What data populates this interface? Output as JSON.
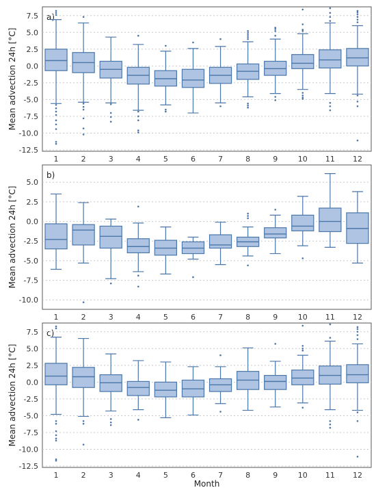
{
  "figure": {
    "xlabel": "Month",
    "ylabel": "Mean advection 24h [°C]",
    "colors": {
      "box_fill": "#aec4e2",
      "box_edge": "#4a76a8",
      "grid": "#c8c8c8",
      "frame": "#555555"
    }
  },
  "chart_data": [
    {
      "type": "box",
      "panel_label": "a)",
      "title": "",
      "xlabel": "",
      "ylabel": "Mean advection 24h [°C]",
      "grid": "horizontal dotted",
      "categories": [
        "1",
        "2",
        "3",
        "4",
        "5",
        "6",
        "7",
        "8",
        "9",
        "10",
        "11",
        "12"
      ],
      "ylim": [
        -12.7,
        8.8
      ],
      "yticks": [
        -12.5,
        -10.0,
        -7.5,
        -5.0,
        -2.5,
        0.0,
        2.5,
        5.0,
        7.5
      ],
      "boxes": [
        {
          "whislo": -5.6,
          "q1": -0.7,
          "med": 0.8,
          "q3": 2.5,
          "whishi": 6.9,
          "fliers": [
            -5.8,
            -6.3,
            -6.8,
            -7.3,
            -8.1,
            -8.7,
            -9.4,
            -11.3,
            -11.6,
            7.6,
            7.9,
            8.2
          ]
        },
        {
          "whislo": -5.4,
          "q1": -1.0,
          "med": 0.5,
          "q3": 2.0,
          "whishi": 6.4,
          "fliers": [
            -5.6,
            -6.1,
            -6.5,
            -7.8,
            -9.3,
            -10.2,
            7.3
          ]
        },
        {
          "whislo": -5.5,
          "q1": -1.8,
          "med": -0.5,
          "q3": 0.7,
          "whishi": 4.3,
          "fliers": [
            -5.7,
            -7.0,
            -7.6,
            -8.3
          ]
        },
        {
          "whislo": -6.6,
          "q1": -2.7,
          "med": -1.4,
          "q3": -0.2,
          "whishi": 3.2,
          "fliers": [
            -6.8,
            -7.5,
            -8.1,
            -9.6,
            -9.9,
            4.5
          ]
        },
        {
          "whislo": -5.8,
          "q1": -3.0,
          "med": -1.9,
          "q3": -0.7,
          "whishi": 2.2,
          "fliers": [
            -6.5,
            -6.8,
            3.0
          ]
        },
        {
          "whislo": -7.0,
          "q1": -3.2,
          "med": -2.1,
          "q3": -0.5,
          "whishi": 2.6,
          "fliers": [
            3.5
          ]
        },
        {
          "whislo": -5.5,
          "q1": -2.6,
          "med": -1.4,
          "q3": -0.2,
          "whishi": 2.9,
          "fliers": [
            -6.0,
            4.0
          ]
        },
        {
          "whislo": -4.6,
          "q1": -2.0,
          "med": -0.8,
          "q3": 0.3,
          "whishi": 3.6,
          "fliers": [
            -5.6,
            -5.9,
            -6.2,
            4.0,
            4.3,
            4.6,
            4.9,
            5.2
          ]
        },
        {
          "whislo": -4.1,
          "q1": -1.4,
          "med": -0.4,
          "q3": 0.7,
          "whishi": 4.0,
          "fliers": [
            -4.6,
            -5.1,
            4.5,
            5.2,
            5.5,
            5.7
          ]
        },
        {
          "whislo": -3.5,
          "q1": -0.4,
          "med": 0.4,
          "q3": 1.7,
          "whishi": 4.8,
          "fliers": [
            -4.0,
            -4.4,
            -4.7,
            -4.9,
            5.2,
            5.4,
            6.2,
            8.4
          ]
        },
        {
          "whislo": -4.1,
          "q1": -0.3,
          "med": 0.9,
          "q3": 2.4,
          "whishi": 6.4,
          "fliers": [
            -5.5,
            -6.0,
            -6.6,
            6.7,
            7.3,
            7.9,
            8.6
          ]
        },
        {
          "whislo": -4.2,
          "q1": 0.0,
          "med": 1.2,
          "q3": 2.6,
          "whishi": 6.0,
          "fliers": [
            -4.4,
            -5.3,
            -6.0,
            -11.1,
            6.5,
            6.9,
            7.3,
            7.7,
            8.0,
            8.2
          ]
        }
      ]
    },
    {
      "type": "box",
      "panel_label": "b)",
      "title": "",
      "xlabel": "",
      "ylabel": "Mean advection 24h [°C]",
      "grid": "horizontal dotted",
      "categories": [
        "1",
        "2",
        "3",
        "4",
        "5",
        "6",
        "7",
        "8",
        "9",
        "10",
        "11",
        "12"
      ],
      "ylim": [
        -11.2,
        7.2
      ],
      "yticks": [
        -10.0,
        -7.5,
        -5.0,
        -2.5,
        0.0,
        2.5,
        5.0
      ],
      "boxes": [
        {
          "whislo": -6.1,
          "q1": -3.5,
          "med": -2.3,
          "q3": -0.3,
          "whishi": 3.5,
          "fliers": []
        },
        {
          "whislo": -5.3,
          "q1": -3.0,
          "med": -1.1,
          "q3": -0.4,
          "whishi": 2.4,
          "fliers": [
            -10.3
          ]
        },
        {
          "whislo": -7.3,
          "q1": -3.4,
          "med": -1.9,
          "q3": -0.6,
          "whishi": 0.3,
          "fliers": [
            -7.9
          ]
        },
        {
          "whislo": -6.4,
          "q1": -4.0,
          "med": -3.2,
          "q3": -2.2,
          "whishi": -0.2,
          "fliers": [
            -6.9,
            -8.3,
            1.9
          ]
        },
        {
          "whislo": -6.7,
          "q1": -4.3,
          "med": -3.4,
          "q3": -2.4,
          "whishi": -0.7,
          "fliers": []
        },
        {
          "whislo": -4.8,
          "q1": -4.1,
          "med": -3.4,
          "q3": -2.6,
          "whishi": -2.0,
          "fliers": [
            -7.1
          ]
        },
        {
          "whislo": -5.5,
          "q1": -3.4,
          "med": -3.0,
          "q3": -1.7,
          "whishi": -0.1,
          "fliers": []
        },
        {
          "whislo": -4.4,
          "q1": -3.2,
          "med": -2.6,
          "q3": -2.0,
          "whishi": -0.7,
          "fliers": [
            -5.6,
            0.4,
            0.7,
            1.0
          ]
        },
        {
          "whislo": -4.1,
          "q1": -2.1,
          "med": -1.6,
          "q3": -0.8,
          "whishi": 0.8,
          "fliers": [
            1.5
          ]
        },
        {
          "whislo": -3.1,
          "q1": -1.2,
          "med": -0.6,
          "q3": 0.8,
          "whishi": 3.2,
          "fliers": [
            -4.7
          ]
        },
        {
          "whislo": -3.3,
          "q1": -1.3,
          "med": 0.0,
          "q3": 1.7,
          "whishi": 6.1,
          "fliers": []
        },
        {
          "whislo": -5.3,
          "q1": -2.8,
          "med": -0.9,
          "q3": 1.1,
          "whishi": 3.8,
          "fliers": []
        }
      ]
    },
    {
      "type": "box",
      "panel_label": "c)",
      "title": "",
      "xlabel": "Month",
      "ylabel": "Mean advection 24h [°C]",
      "grid": "horizontal dotted",
      "categories": [
        "1",
        "2",
        "3",
        "4",
        "5",
        "6",
        "7",
        "8",
        "9",
        "10",
        "11",
        "12"
      ],
      "ylim": [
        -12.7,
        8.8
      ],
      "yticks": [
        -12.5,
        -10.0,
        -7.5,
        -5.0,
        -2.5,
        0.0,
        2.5,
        5.0,
        7.5
      ],
      "boxes": [
        {
          "whislo": -4.8,
          "q1": -0.4,
          "med": 0.9,
          "q3": 2.8,
          "whishi": 6.7,
          "fliers": [
            -5.8,
            -6.2,
            -7.3,
            -7.9,
            -8.4,
            -8.7,
            -11.5,
            -11.7,
            8.0,
            8.3
          ]
        },
        {
          "whislo": -5.1,
          "q1": -0.8,
          "med": 0.8,
          "q3": 2.2,
          "whishi": 6.5,
          "fliers": [
            -5.8,
            -6.2,
            -9.3
          ]
        },
        {
          "whislo": -4.3,
          "q1": -1.4,
          "med": -0.1,
          "q3": 1.1,
          "whishi": 4.2,
          "fliers": [
            -5.5,
            -6.0,
            -6.4
          ]
        },
        {
          "whislo": -4.1,
          "q1": -2.0,
          "med": -0.8,
          "q3": 0.1,
          "whishi": 3.2,
          "fliers": [
            -5.6
          ]
        },
        {
          "whislo": -5.3,
          "q1": -2.2,
          "med": -1.2,
          "q3": 0.0,
          "whishi": 3.0,
          "fliers": []
        },
        {
          "whislo": -4.9,
          "q1": -2.2,
          "med": -1.0,
          "q3": 0.3,
          "whishi": 2.3,
          "fliers": []
        },
        {
          "whislo": -3.2,
          "q1": -1.4,
          "med": -0.4,
          "q3": 0.5,
          "whishi": 2.3,
          "fliers": [
            -4.4,
            4.0
          ]
        },
        {
          "whislo": -4.2,
          "q1": -1.1,
          "med": 0.3,
          "q3": 1.6,
          "whishi": 5.1,
          "fliers": []
        },
        {
          "whislo": -3.7,
          "q1": -1.1,
          "med": 0.1,
          "q3": 1.0,
          "whishi": 3.1,
          "fliers": [
            5.7
          ]
        },
        {
          "whislo": -3.1,
          "q1": -0.4,
          "med": 0.6,
          "q3": 1.8,
          "whishi": 4.0,
          "fliers": [
            -3.8,
            4.7,
            5.0,
            5.4,
            8.4
          ]
        },
        {
          "whislo": -4.1,
          "q1": -0.3,
          "med": 1.0,
          "q3": 2.4,
          "whishi": 6.1,
          "fliers": [
            -5.8,
            -6.3,
            -6.8,
            6.6,
            8.6
          ]
        },
        {
          "whislo": -4.2,
          "q1": -0.1,
          "med": 1.1,
          "q3": 2.6,
          "whishi": 5.7,
          "fliers": [
            -4.5,
            -5.8,
            -11.1,
            6.4,
            7.0,
            7.5,
            7.9,
            8.2
          ]
        }
      ]
    }
  ]
}
